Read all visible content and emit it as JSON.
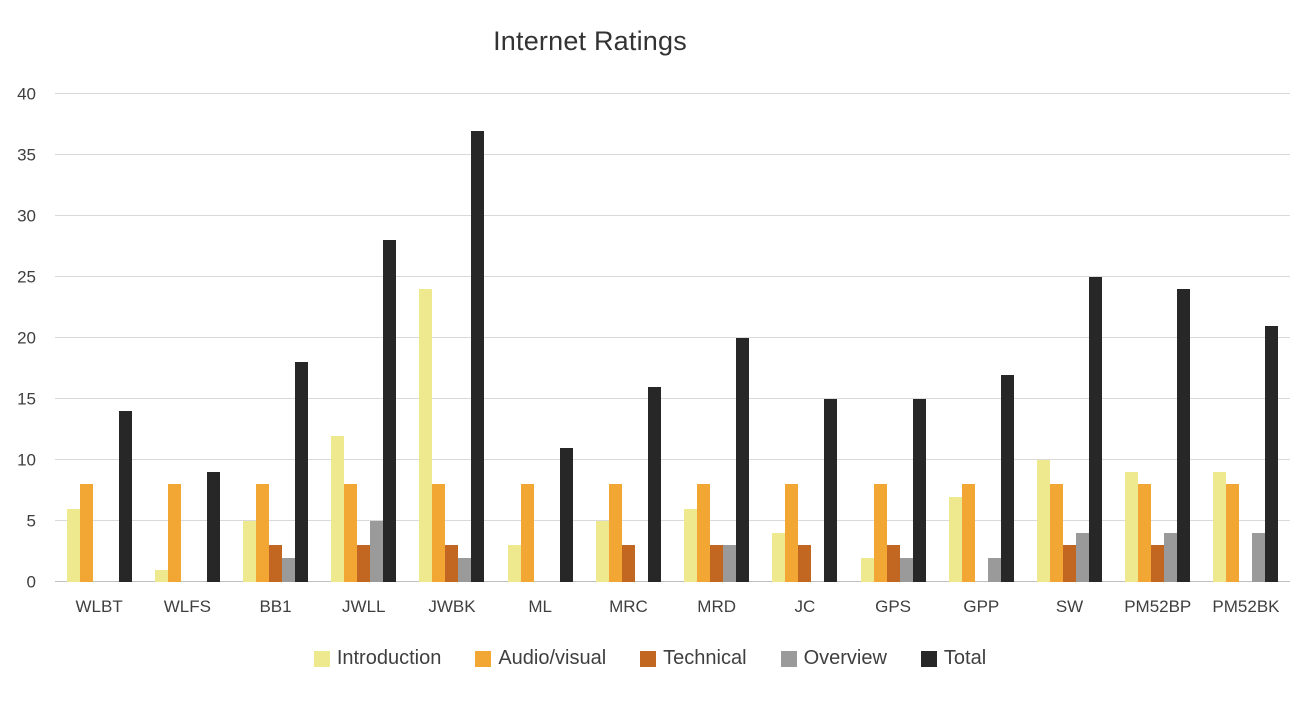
{
  "chart_data": {
    "type": "bar",
    "title": "Internet Ratings",
    "xlabel": "",
    "ylabel": "",
    "ylim": [
      0,
      40
    ],
    "yticks": [
      0,
      5,
      10,
      15,
      20,
      25,
      30,
      35,
      40
    ],
    "grid": true,
    "legend_position": "bottom",
    "categories": [
      "WLBT",
      "WLFS",
      "BB1",
      "JWLL",
      "JWBK",
      "ML",
      "MRC",
      "MRD",
      "JC",
      "GPS",
      "GPP",
      "SW",
      "PM52BP",
      "PM52BK"
    ],
    "series": [
      {
        "name": "Introduction",
        "color": "#EEE88F",
        "values": [
          6,
          1,
          5,
          12,
          24,
          3,
          5,
          6,
          4,
          2,
          7,
          10,
          9,
          9
        ]
      },
      {
        "name": "Audio/visual",
        "color": "#F2A735",
        "values": [
          8,
          8,
          8,
          8,
          8,
          8,
          8,
          8,
          8,
          8,
          8,
          8,
          8,
          8
        ]
      },
      {
        "name": "Technical",
        "color": "#C26722",
        "values": [
          0,
          0,
          3,
          3,
          3,
          0,
          3,
          3,
          3,
          3,
          0,
          3,
          3,
          0
        ]
      },
      {
        "name": "Overview",
        "color": "#9A9A9A",
        "values": [
          0,
          0,
          2,
          5,
          2,
          0,
          0,
          3,
          0,
          2,
          2,
          4,
          4,
          4
        ]
      },
      {
        "name": "Total",
        "color": "#272727",
        "values": [
          14,
          9,
          18,
          28,
          37,
          11,
          16,
          20,
          15,
          15,
          17,
          25,
          24,
          21
        ]
      }
    ]
  },
  "colors": {
    "gridline": "#D9D9D9",
    "baseline": "#BFBFBF",
    "axis_text": "#3F3F3F",
    "title_text": "#333333",
    "background": "#FFFFFF"
  }
}
